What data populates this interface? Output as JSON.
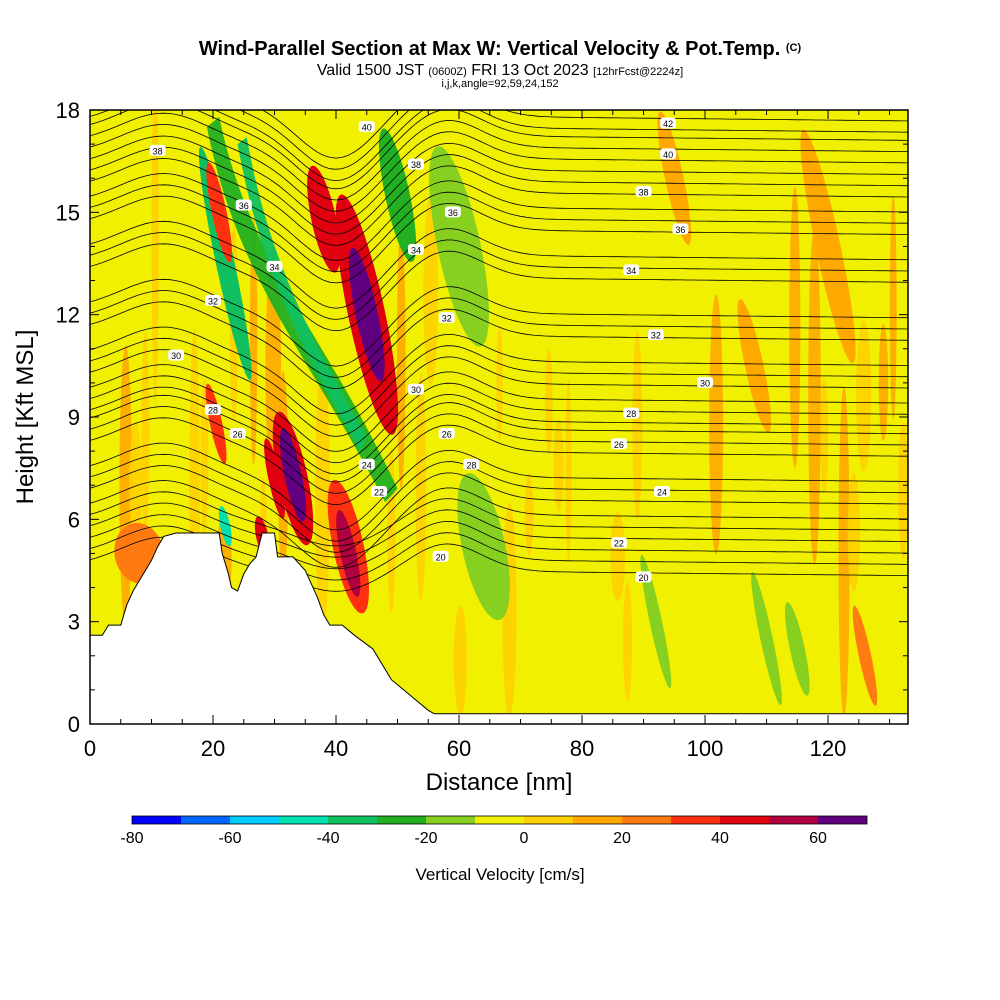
{
  "title": {
    "main": "Wind-Parallel Section at Max W: Vertical Velocity & Pot.Temp.",
    "main_suffix": "(C)",
    "sub_a": "Valid 1500 JST",
    "sub_b": "(0600Z)",
    "sub_c": "FRI 13 Oct 2023",
    "sub_d": "[12hrFcst@2224z]",
    "sub3": "i,j,k,angle=92,59,24,152"
  },
  "chart_data": {
    "type": "heatmap",
    "xlabel": "Distance [nm]",
    "ylabel": "Height [Kft MSL]",
    "xlim": [
      0,
      133
    ],
    "ylim": [
      0,
      18
    ],
    "x_ticks": [
      0,
      20,
      40,
      60,
      80,
      100,
      120
    ],
    "y_ticks": [
      0,
      3,
      6,
      9,
      12,
      15,
      18
    ],
    "colorbar": {
      "title": "Vertical Velocity [cm/s]",
      "tick_labels": [
        -80,
        -60,
        -40,
        -20,
        0,
        20,
        40,
        60
      ],
      "bins": [
        -80,
        -70,
        -60,
        -50,
        -40,
        -30,
        -20,
        -10,
        0,
        10,
        20,
        30,
        40,
        50,
        60,
        70
      ],
      "colors": [
        "#0000ff",
        "#0066ff",
        "#00ccff",
        "#00e0b0",
        "#10c060",
        "#22b022",
        "#88d020",
        "#f0f000",
        "#ffd000",
        "#ffa800",
        "#ff7a10",
        "#ff3010",
        "#e00010",
        "#b00040",
        "#600080"
      ]
    },
    "background_color": "#f0f000",
    "terrain_profile": [
      [
        0,
        2.6
      ],
      [
        2,
        2.6
      ],
      [
        3,
        2.9
      ],
      [
        5,
        2.9
      ],
      [
        5.5,
        3.2
      ],
      [
        6,
        3.5
      ],
      [
        7,
        3.9
      ],
      [
        8,
        4.2
      ],
      [
        9,
        4.5
      ],
      [
        10,
        4.8
      ],
      [
        11,
        5.2
      ],
      [
        12,
        5.5
      ],
      [
        14,
        5.6
      ],
      [
        20,
        5.6
      ],
      [
        21,
        5.6
      ],
      [
        21.5,
        5.0
      ],
      [
        22.5,
        4.4
      ],
      [
        23,
        4.0
      ],
      [
        24,
        3.9
      ],
      [
        25,
        4.4
      ],
      [
        26,
        4.7
      ],
      [
        27,
        4.9
      ],
      [
        28,
        5.6
      ],
      [
        30,
        5.6
      ],
      [
        30.5,
        4.9
      ],
      [
        33,
        4.9
      ],
      [
        35,
        4.5
      ],
      [
        36,
        4.1
      ],
      [
        37,
        3.7
      ],
      [
        38,
        3.2
      ],
      [
        39,
        2.9
      ],
      [
        41,
        2.9
      ],
      [
        43,
        2.6
      ],
      [
        46,
        2.2
      ],
      [
        47,
        1.9
      ],
      [
        48,
        1.6
      ],
      [
        49,
        1.3
      ],
      [
        51,
        1.0
      ],
      [
        53,
        0.7
      ],
      [
        55,
        0.4
      ],
      [
        56,
        0.3
      ],
      [
        133,
        0.3
      ]
    ],
    "velocity_features": [
      {
        "x": 45,
        "y": 12.0,
        "rx": 1.8,
        "ry": 2.0,
        "value": 60
      },
      {
        "x": 45,
        "y": 12.0,
        "rx": 3.0,
        "ry": 3.6,
        "value": 40
      },
      {
        "x": 38,
        "y": 14.8,
        "rx": 2.0,
        "ry": 1.6,
        "value": 40
      },
      {
        "x": 33,
        "y": 7.3,
        "rx": 1.4,
        "ry": 1.4,
        "value": 60
      },
      {
        "x": 33,
        "y": 7.2,
        "rx": 2.4,
        "ry": 2.0,
        "value": 40
      },
      {
        "x": 30,
        "y": 7.2,
        "rx": 1.0,
        "ry": 1.2,
        "value": 40
      },
      {
        "x": 42,
        "y": 5.0,
        "rx": 1.3,
        "ry": 1.3,
        "value": 50
      },
      {
        "x": 42,
        "y": 5.2,
        "rx": 2.5,
        "ry": 2.0,
        "value": 30
      },
      {
        "x": 21,
        "y": 15.0,
        "rx": 1.2,
        "ry": 1.5,
        "value": 30
      },
      {
        "x": 20.5,
        "y": 8.8,
        "rx": 1.0,
        "ry": 1.2,
        "value": 30
      },
      {
        "x": 28,
        "y": 5.5,
        "rx": 1.0,
        "ry": 0.6,
        "value": 40
      },
      {
        "x": 8,
        "y": 5.0,
        "rx": 4.0,
        "ry": 0.9,
        "value": 20
      },
      {
        "x": 22,
        "y": 13.5,
        "rx": 1.5,
        "ry": 3.5,
        "value": -40
      },
      {
        "x": 22,
        "y": 5.8,
        "rx": 0.8,
        "ry": 0.6,
        "value": -50
      },
      {
        "x": 60,
        "y": 14.0,
        "rx": 3.5,
        "ry": 3.0,
        "value": -20
      },
      {
        "x": 64,
        "y": 5.2,
        "rx": 3.5,
        "ry": 2.2,
        "value": -20
      },
      {
        "x": 50,
        "y": 15.5,
        "rx": 2.0,
        "ry": 2.0,
        "value": -30
      },
      {
        "x": 92,
        "y": 3.0,
        "rx": 1.0,
        "ry": 2.0,
        "value": -20
      },
      {
        "x": 110,
        "y": 2.5,
        "rx": 1.0,
        "ry": 2.0,
        "value": -20
      },
      {
        "x": 115,
        "y": 2.2,
        "rx": 1.2,
        "ry": 1.4,
        "value": -20
      },
      {
        "x": 126,
        "y": 2.0,
        "rx": 1.0,
        "ry": 1.5,
        "value": 20
      },
      {
        "x": 120,
        "y": 14.0,
        "rx": 2.0,
        "ry": 3.5,
        "value": 10
      },
      {
        "x": 108,
        "y": 10.5,
        "rx": 1.5,
        "ry": 2.0,
        "value": 10
      },
      {
        "x": 95,
        "y": 16.0,
        "rx": 1.5,
        "ry": 2.0,
        "value": 10
      }
    ],
    "theta_contours": {
      "levels": [
        20,
        22,
        24,
        26,
        28,
        30,
        32,
        34,
        36,
        38,
        40,
        42
      ],
      "labels": [
        {
          "text": "20",
          "x": 57,
          "y": 4.9
        },
        {
          "text": "20",
          "x": 90,
          "y": 4.3
        },
        {
          "text": "22",
          "x": 47,
          "y": 6.8
        },
        {
          "text": "22",
          "x": 86,
          "y": 5.3
        },
        {
          "text": "24",
          "x": 45,
          "y": 7.6
        },
        {
          "text": "24",
          "x": 93,
          "y": 6.8
        },
        {
          "text": "26",
          "x": 24,
          "y": 8.5
        },
        {
          "text": "26",
          "x": 58,
          "y": 8.5
        },
        {
          "text": "26",
          "x": 86,
          "y": 8.2
        },
        {
          "text": "28",
          "x": 20,
          "y": 9.2
        },
        {
          "text": "28",
          "x": 62,
          "y": 7.6
        },
        {
          "text": "28",
          "x": 88,
          "y": 9.1
        },
        {
          "text": "30",
          "x": 14,
          "y": 10.8
        },
        {
          "text": "30",
          "x": 53,
          "y": 9.8
        },
        {
          "text": "30",
          "x": 100,
          "y": 10.0
        },
        {
          "text": "32",
          "x": 20,
          "y": 12.4
        },
        {
          "text": "32",
          "x": 58,
          "y": 11.9
        },
        {
          "text": "32",
          "x": 92,
          "y": 11.4
        },
        {
          "text": "34",
          "x": 30,
          "y": 13.4
        },
        {
          "text": "34",
          "x": 53,
          "y": 13.9
        },
        {
          "text": "34",
          "x": 88,
          "y": 13.3
        },
        {
          "text": "36",
          "x": 25,
          "y": 15.2
        },
        {
          "text": "36",
          "x": 59,
          "y": 15.0
        },
        {
          "text": "36",
          "x": 96,
          "y": 14.5
        },
        {
          "text": "38",
          "x": 11,
          "y": 16.8
        },
        {
          "text": "38",
          "x": 53,
          "y": 16.4
        },
        {
          "text": "38",
          "x": 90,
          "y": 15.6
        },
        {
          "text": "40",
          "x": 45,
          "y": 17.5
        },
        {
          "text": "40",
          "x": 94,
          "y": 16.7
        },
        {
          "text": "42",
          "x": 94,
          "y": 17.6
        }
      ]
    }
  }
}
